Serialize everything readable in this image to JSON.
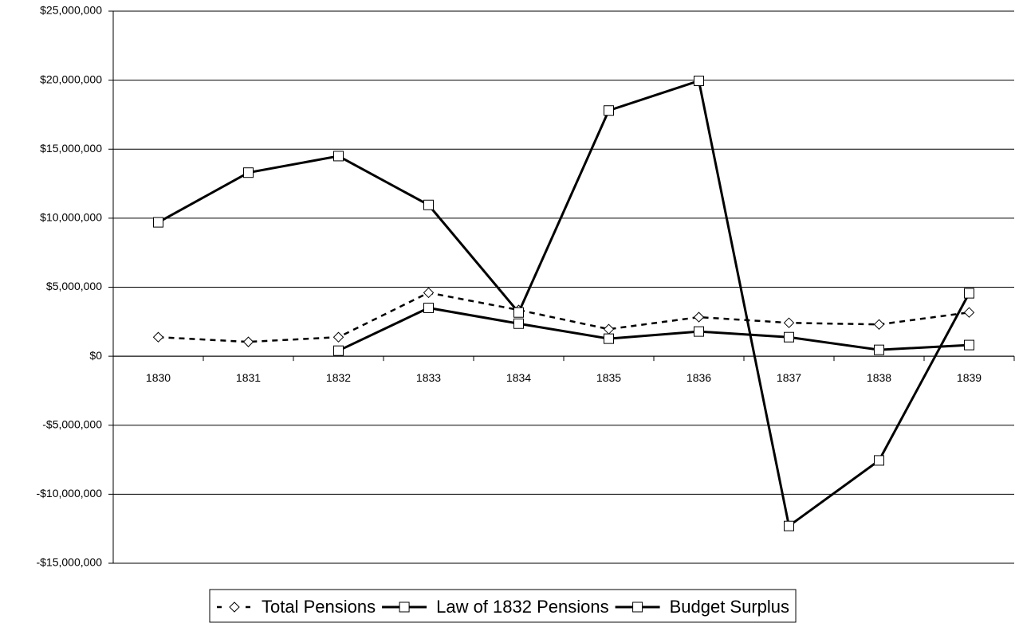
{
  "chart_data": {
    "type": "line",
    "categories": [
      "1830",
      "1831",
      "1832",
      "1833",
      "1834",
      "1835",
      "1836",
      "1837",
      "1838",
      "1839"
    ],
    "series": [
      {
        "name": "Total Pensions",
        "color": "#000000",
        "line_style": "dashed",
        "marker": "diamond",
        "values": [
          1380000,
          1040000,
          1380000,
          4600000,
          3350000,
          1960000,
          2830000,
          2420000,
          2300000,
          3170000
        ]
      },
      {
        "name": "Law of 1832 Pensions",
        "color": "#000000",
        "line_style": "solid",
        "marker": "square",
        "values": [
          null,
          null,
          400000,
          3500000,
          2360000,
          1270000,
          1790000,
          1380000,
          460000,
          810000
        ]
      },
      {
        "name": "Budget Surplus",
        "color": "#000000",
        "line_style": "solid",
        "marker": "square",
        "values": [
          9700000,
          13300000,
          14500000,
          10960000,
          3170000,
          17800000,
          19950000,
          -12300000,
          -7550000,
          4560000
        ]
      }
    ],
    "ylim": [
      -15000000,
      25000000
    ],
    "yticks": [
      {
        "value": -15000000,
        "label": "-$15,000,000"
      },
      {
        "value": -10000000,
        "label": "-$10,000,000"
      },
      {
        "value": -5000000,
        "label": "-$5,000,000"
      },
      {
        "value": 0,
        "label": "$0"
      },
      {
        "value": 5000000,
        "label": "$5,000,000"
      },
      {
        "value": 10000000,
        "label": "$10,000,000"
      },
      {
        "value": 15000000,
        "label": "$15,000,000"
      },
      {
        "value": 20000000,
        "label": "$20,000,000"
      },
      {
        "value": 25000000,
        "label": "$25,000,000"
      }
    ],
    "grid": true,
    "legend": "bottom"
  }
}
